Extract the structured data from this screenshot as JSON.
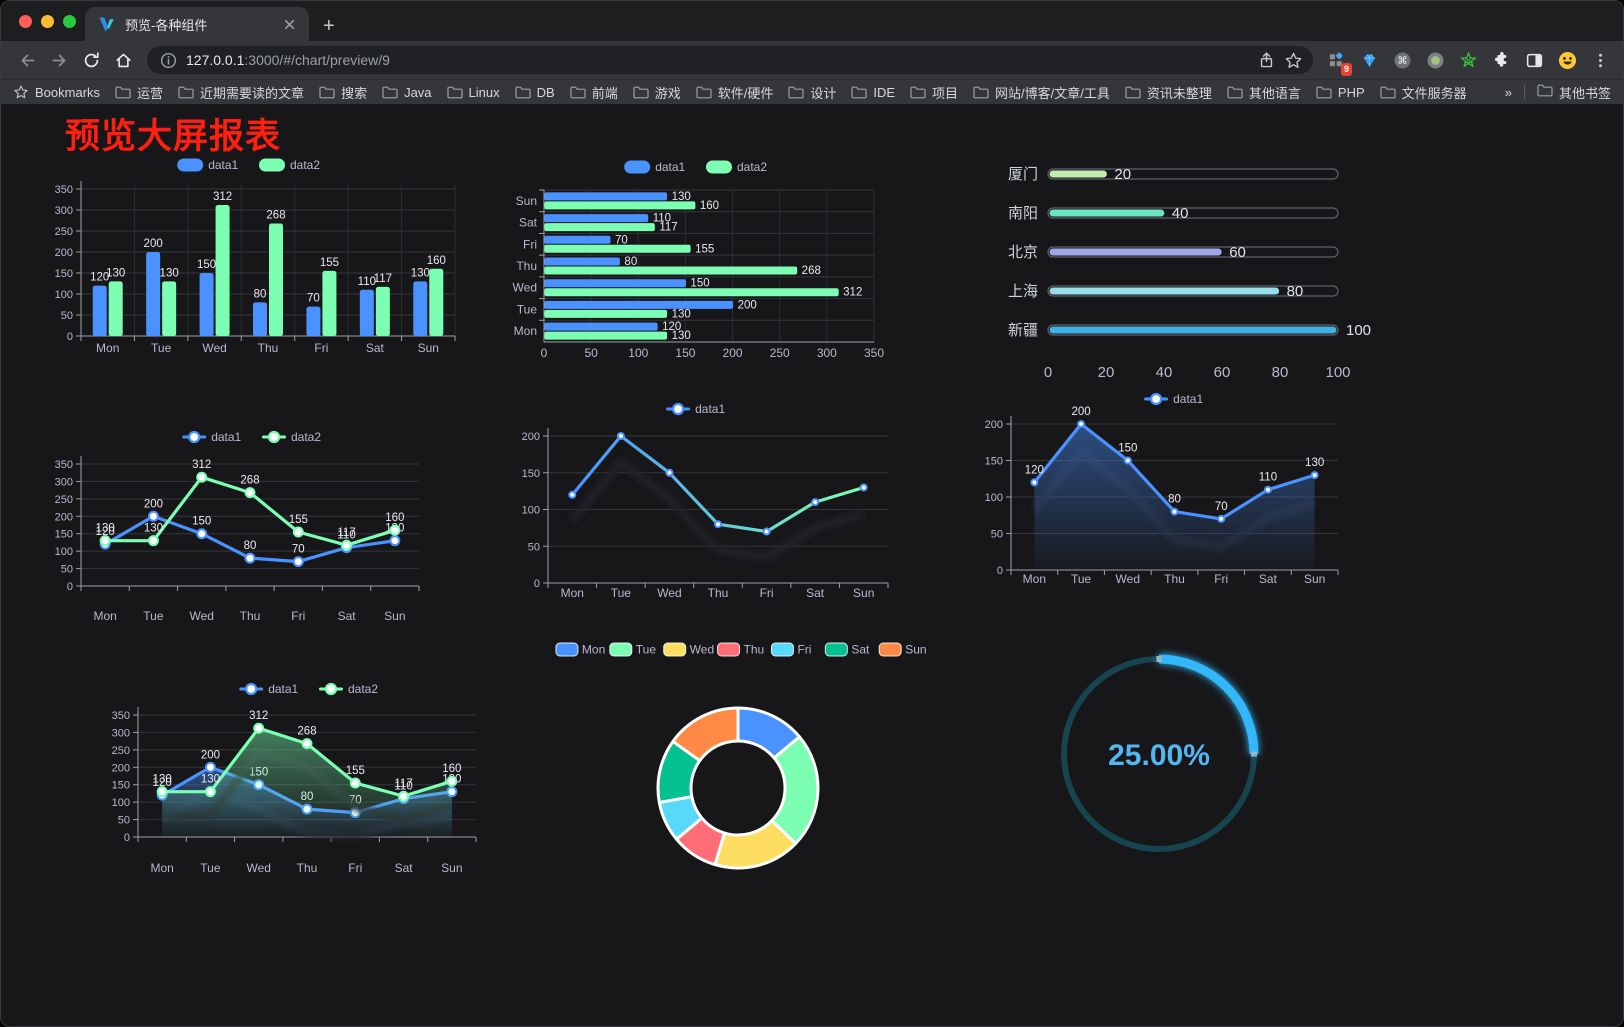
{
  "browser": {
    "tab": {
      "title": "预览-各种组件"
    },
    "new_tab_label": "+",
    "nav": {
      "url_host": "127.0.0.1",
      "url_path": ":3000/#/chart/preview/9"
    },
    "extensions_badge": "9",
    "bookmarks_bar": {
      "label": "Bookmarks",
      "items": [
        "运营",
        "近期需要读的文章",
        "搜索",
        "Java",
        "Linux",
        "DB",
        "前端",
        "游戏",
        "软件/硬件",
        "设计",
        "IDE",
        "项目",
        "网站/博客/文章/工具",
        "资讯未整理",
        "其他语言",
        "PHP",
        "文件服务器"
      ],
      "overflow": "»",
      "other": "其他书签"
    }
  },
  "page": {
    "title": "预览大屏报表",
    "title_color": "#ff1f11"
  },
  "chart_data": [
    {
      "id": "bar-grouped",
      "type": "bar",
      "categories": [
        "Mon",
        "Tue",
        "Wed",
        "Thu",
        "Fri",
        "Sat",
        "Sun"
      ],
      "series": [
        {
          "name": "data1",
          "color": "#4992ff",
          "values": [
            120,
            200,
            150,
            80,
            70,
            110,
            130
          ]
        },
        {
          "name": "data2",
          "color": "#7cffb2",
          "values": [
            130,
            130,
            312,
            268,
            155,
            117,
            160
          ]
        }
      ],
      "ylim": [
        0,
        350
      ],
      "yticks": [
        0,
        50,
        100,
        150,
        200,
        250,
        300,
        350
      ],
      "legend_position": "top",
      "grid": true
    },
    {
      "id": "bar-horizontal",
      "type": "bar",
      "orientation": "horizontal",
      "categories": [
        "Mon",
        "Tue",
        "Wed",
        "Thu",
        "Fri",
        "Sat",
        "Sun"
      ],
      "series": [
        {
          "name": "data1",
          "color": "#4992ff",
          "values": [
            120,
            200,
            150,
            80,
            70,
            110,
            130
          ]
        },
        {
          "name": "data2",
          "color": "#7cffb2",
          "values": [
            130,
            130,
            312,
            268,
            155,
            117,
            160
          ]
        }
      ],
      "xlim": [
        0,
        350
      ],
      "xticks": [
        0,
        50,
        100,
        150,
        200,
        250,
        300,
        350
      ],
      "legend_position": "top",
      "grid": true
    },
    {
      "id": "progress-bars",
      "type": "bar",
      "orientation": "horizontal",
      "rows": [
        {
          "label": "厦门",
          "value": 20,
          "color": "#c4ebad"
        },
        {
          "label": "南阳",
          "value": 40,
          "color": "#6be6c1"
        },
        {
          "label": "北京",
          "value": 60,
          "color": "#a0a7e6"
        },
        {
          "label": "上海",
          "value": 80,
          "color": "#96dee8"
        },
        {
          "label": "新疆",
          "value": 100,
          "color": "#3fb1e3"
        }
      ],
      "xlim": [
        0,
        100
      ],
      "xticks": [
        0,
        20,
        40,
        60,
        80,
        100
      ]
    },
    {
      "id": "line-dual",
      "type": "line",
      "categories": [
        "Mon",
        "Tue",
        "Wed",
        "Thu",
        "Fri",
        "Sat",
        "Sun"
      ],
      "series": [
        {
          "name": "data1",
          "color": "#4992ff",
          "values": [
            120,
            200,
            150,
            80,
            70,
            110,
            130
          ]
        },
        {
          "name": "data2",
          "color": "#7cffb2",
          "values": [
            130,
            130,
            312,
            268,
            155,
            117,
            160
          ]
        }
      ],
      "ylim": [
        0,
        350
      ],
      "yticks": [
        0,
        50,
        100,
        150,
        200,
        250,
        300,
        350
      ],
      "legend_position": "top",
      "point_labels": true
    },
    {
      "id": "line-gradient",
      "type": "line",
      "categories": [
        "Mon",
        "Tue",
        "Wed",
        "Thu",
        "Fri",
        "Sat",
        "Sun"
      ],
      "series": [
        {
          "name": "data1",
          "gradient": [
            "#4992ff",
            "#7cffb2"
          ],
          "color": "#4992ff",
          "values": [
            120,
            200,
            150,
            80,
            70,
            110,
            130
          ]
        }
      ],
      "ylim": [
        0,
        200
      ],
      "yticks": [
        0,
        50,
        100,
        150,
        200
      ],
      "legend_position": "top",
      "point_labels": false
    },
    {
      "id": "area-single",
      "type": "area",
      "categories": [
        "Mon",
        "Tue",
        "Wed",
        "Thu",
        "Fri",
        "Sat",
        "Sun"
      ],
      "series": [
        {
          "name": "data1",
          "color": "#4992ff",
          "values": [
            120,
            200,
            150,
            80,
            70,
            110,
            130
          ],
          "area": true
        }
      ],
      "ylim": [
        0,
        200
      ],
      "yticks": [
        0,
        50,
        100,
        150,
        200
      ],
      "legend_position": "top",
      "point_labels": true
    },
    {
      "id": "area-dual",
      "type": "area",
      "categories": [
        "Mon",
        "Tue",
        "Wed",
        "Thu",
        "Fri",
        "Sat",
        "Sun"
      ],
      "series": [
        {
          "name": "data1",
          "color": "#4992ff",
          "values": [
            120,
            200,
            150,
            80,
            70,
            110,
            130
          ],
          "area": true
        },
        {
          "name": "data2",
          "color": "#7cffb2",
          "values": [
            130,
            130,
            312,
            268,
            155,
            117,
            160
          ],
          "area": true
        }
      ],
      "ylim": [
        0,
        350
      ],
      "yticks": [
        0,
        50,
        100,
        150,
        200,
        250,
        300,
        350
      ],
      "legend_position": "top",
      "point_labels": true
    },
    {
      "id": "donut",
      "type": "pie",
      "slices": [
        {
          "label": "Mon",
          "value": 120,
          "color": "#4992ff"
        },
        {
          "label": "Tue",
          "value": 200,
          "color": "#7cffb2"
        },
        {
          "label": "Wed",
          "value": 150,
          "color": "#fddd60"
        },
        {
          "label": "Thu",
          "value": 80,
          "color": "#ff6e76"
        },
        {
          "label": "Fri",
          "value": 70,
          "color": "#58d9f9"
        },
        {
          "label": "Sat",
          "value": 110,
          "color": "#05c091"
        },
        {
          "label": "Sun",
          "value": 130,
          "color": "#ff8a45"
        }
      ],
      "legend_position": "top",
      "inner_radius_ratio": 0.58
    },
    {
      "id": "gauge",
      "type": "gauge",
      "percent": 25,
      "label": "25.00%",
      "color": "#30b7f8",
      "track_color": "#17454f",
      "text_color": "#53b7f3"
    }
  ]
}
